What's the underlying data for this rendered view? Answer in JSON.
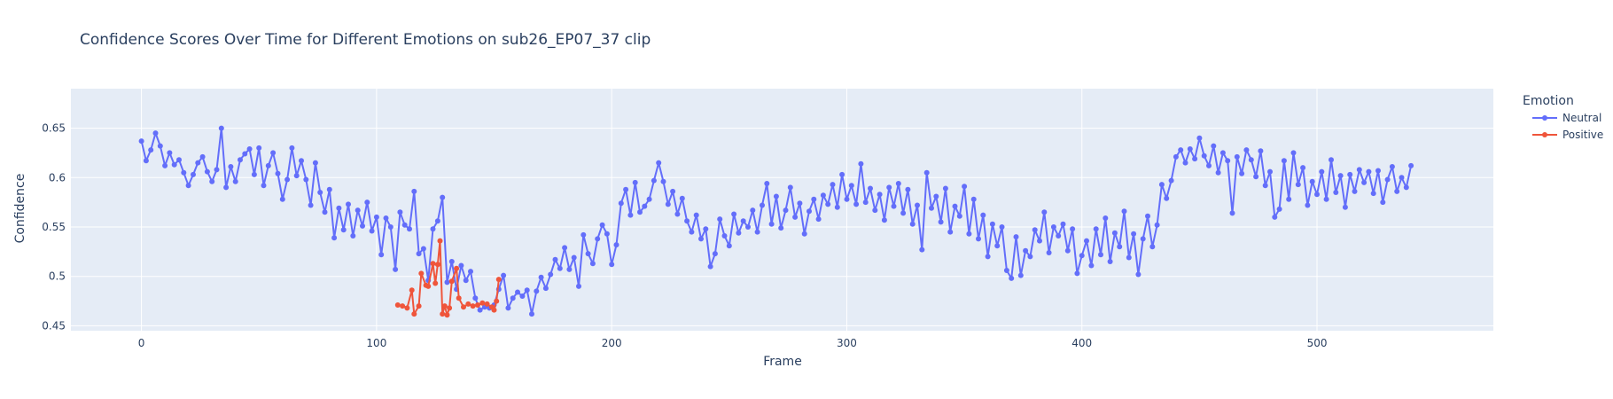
{
  "chart_data": {
    "type": "line",
    "title": "Confidence Scores Over Time for Different Emotions on sub26_EP07_37 clip",
    "xlabel": "Frame",
    "ylabel": "Confidence",
    "xlim": [
      -30,
      575
    ],
    "ylim": [
      0.445,
      0.69
    ],
    "x_ticks": [
      0,
      100,
      200,
      300,
      400,
      500
    ],
    "x_tick_labels": [
      "0",
      "100",
      "200",
      "300",
      "400",
      "500"
    ],
    "y_ticks": [
      0.45,
      0.5,
      0.55,
      0.6,
      0.65
    ],
    "y_tick_labels": [
      "0.45",
      "0.5",
      "0.55",
      "0.6",
      "0.65"
    ],
    "grid": true,
    "legend_title": "Emotion",
    "legend_position": "top-right",
    "series": [
      {
        "name": "Neutral",
        "color": "#636efa",
        "points": [
          [
            0,
            0.637
          ],
          [
            2,
            0.617
          ],
          [
            4,
            0.628
          ],
          [
            6,
            0.645
          ],
          [
            8,
            0.632
          ],
          [
            10,
            0.612
          ],
          [
            12,
            0.625
          ],
          [
            14,
            0.613
          ],
          [
            16,
            0.618
          ],
          [
            18,
            0.605
          ],
          [
            20,
            0.592
          ],
          [
            22,
            0.603
          ],
          [
            24,
            0.615
          ],
          [
            26,
            0.621
          ],
          [
            28,
            0.606
          ],
          [
            30,
            0.596
          ],
          [
            32,
            0.608
          ],
          [
            34,
            0.65
          ],
          [
            36,
            0.59
          ],
          [
            38,
            0.611
          ],
          [
            40,
            0.596
          ],
          [
            42,
            0.618
          ],
          [
            44,
            0.624
          ],
          [
            46,
            0.629
          ],
          [
            48,
            0.603
          ],
          [
            50,
            0.63
          ],
          [
            52,
            0.592
          ],
          [
            54,
            0.612
          ],
          [
            56,
            0.625
          ],
          [
            58,
            0.604
          ],
          [
            60,
            0.578
          ],
          [
            62,
            0.598
          ],
          [
            64,
            0.63
          ],
          [
            66,
            0.602
          ],
          [
            68,
            0.617
          ],
          [
            70,
            0.598
          ],
          [
            72,
            0.572
          ],
          [
            74,
            0.615
          ],
          [
            76,
            0.585
          ],
          [
            78,
            0.565
          ],
          [
            80,
            0.588
          ],
          [
            82,
            0.539
          ],
          [
            84,
            0.569
          ],
          [
            86,
            0.547
          ],
          [
            88,
            0.573
          ],
          [
            90,
            0.541
          ],
          [
            92,
            0.567
          ],
          [
            94,
            0.551
          ],
          [
            96,
            0.575
          ],
          [
            98,
            0.546
          ],
          [
            100,
            0.56
          ],
          [
            102,
            0.522
          ],
          [
            104,
            0.559
          ],
          [
            106,
            0.55
          ],
          [
            108,
            0.507
          ],
          [
            110,
            0.565
          ],
          [
            112,
            0.552
          ],
          [
            114,
            0.548
          ],
          [
            116,
            0.586
          ],
          [
            118,
            0.523
          ],
          [
            120,
            0.528
          ],
          [
            122,
            0.496
          ],
          [
            124,
            0.548
          ],
          [
            126,
            0.556
          ],
          [
            128,
            0.58
          ],
          [
            130,
            0.494
          ],
          [
            132,
            0.515
          ],
          [
            134,
            0.487
          ],
          [
            136,
            0.511
          ],
          [
            138,
            0.496
          ],
          [
            140,
            0.505
          ],
          [
            142,
            0.478
          ],
          [
            144,
            0.466
          ],
          [
            146,
            0.469
          ],
          [
            148,
            0.468
          ],
          [
            150,
            0.471
          ],
          [
            152,
            0.487
          ],
          [
            154,
            0.501
          ],
          [
            156,
            0.468
          ],
          [
            158,
            0.478
          ],
          [
            160,
            0.484
          ],
          [
            162,
            0.48
          ],
          [
            164,
            0.486
          ],
          [
            166,
            0.462
          ],
          [
            168,
            0.485
          ],
          [
            170,
            0.499
          ],
          [
            172,
            0.488
          ],
          [
            174,
            0.502
          ],
          [
            176,
            0.517
          ],
          [
            178,
            0.508
          ],
          [
            180,
            0.529
          ],
          [
            182,
            0.507
          ],
          [
            184,
            0.519
          ],
          [
            186,
            0.49
          ],
          [
            188,
            0.542
          ],
          [
            190,
            0.523
          ],
          [
            192,
            0.513
          ],
          [
            194,
            0.538
          ],
          [
            196,
            0.552
          ],
          [
            198,
            0.543
          ],
          [
            200,
            0.512
          ],
          [
            202,
            0.532
          ],
          [
            204,
            0.574
          ],
          [
            206,
            0.588
          ],
          [
            208,
            0.562
          ],
          [
            210,
            0.595
          ],
          [
            212,
            0.565
          ],
          [
            214,
            0.571
          ],
          [
            216,
            0.578
          ],
          [
            218,
            0.597
          ],
          [
            220,
            0.615
          ],
          [
            222,
            0.596
          ],
          [
            224,
            0.573
          ],
          [
            226,
            0.586
          ],
          [
            228,
            0.563
          ],
          [
            230,
            0.579
          ],
          [
            232,
            0.556
          ],
          [
            234,
            0.545
          ],
          [
            236,
            0.562
          ],
          [
            238,
            0.538
          ],
          [
            240,
            0.548
          ],
          [
            242,
            0.51
          ],
          [
            244,
            0.523
          ],
          [
            246,
            0.558
          ],
          [
            248,
            0.541
          ],
          [
            250,
            0.531
          ],
          [
            252,
            0.563
          ],
          [
            254,
            0.544
          ],
          [
            256,
            0.556
          ],
          [
            258,
            0.55
          ],
          [
            260,
            0.567
          ],
          [
            262,
            0.545
          ],
          [
            264,
            0.572
          ],
          [
            266,
            0.594
          ],
          [
            268,
            0.553
          ],
          [
            270,
            0.581
          ],
          [
            272,
            0.549
          ],
          [
            274,
            0.567
          ],
          [
            276,
            0.59
          ],
          [
            278,
            0.56
          ],
          [
            280,
            0.574
          ],
          [
            282,
            0.543
          ],
          [
            284,
            0.566
          ],
          [
            286,
            0.578
          ],
          [
            288,
            0.558
          ],
          [
            290,
            0.582
          ],
          [
            292,
            0.573
          ],
          [
            294,
            0.593
          ],
          [
            296,
            0.57
          ],
          [
            298,
            0.603
          ],
          [
            300,
            0.578
          ],
          [
            302,
            0.592
          ],
          [
            304,
            0.573
          ],
          [
            306,
            0.614
          ],
          [
            308,
            0.575
          ],
          [
            310,
            0.589
          ],
          [
            312,
            0.567
          ],
          [
            314,
            0.583
          ],
          [
            316,
            0.557
          ],
          [
            318,
            0.59
          ],
          [
            320,
            0.571
          ],
          [
            322,
            0.594
          ],
          [
            324,
            0.564
          ],
          [
            326,
            0.588
          ],
          [
            328,
            0.553
          ],
          [
            330,
            0.572
          ],
          [
            332,
            0.527
          ],
          [
            334,
            0.605
          ],
          [
            336,
            0.569
          ],
          [
            338,
            0.581
          ],
          [
            340,
            0.555
          ],
          [
            342,
            0.589
          ],
          [
            344,
            0.545
          ],
          [
            346,
            0.571
          ],
          [
            348,
            0.561
          ],
          [
            350,
            0.591
          ],
          [
            352,
            0.543
          ],
          [
            354,
            0.578
          ],
          [
            356,
            0.538
          ],
          [
            358,
            0.562
          ],
          [
            360,
            0.52
          ],
          [
            362,
            0.553
          ],
          [
            364,
            0.531
          ],
          [
            366,
            0.55
          ],
          [
            368,
            0.506
          ],
          [
            370,
            0.498
          ],
          [
            372,
            0.54
          ],
          [
            374,
            0.501
          ],
          [
            376,
            0.526
          ],
          [
            378,
            0.52
          ],
          [
            380,
            0.547
          ],
          [
            382,
            0.536
          ],
          [
            384,
            0.565
          ],
          [
            386,
            0.524
          ],
          [
            388,
            0.55
          ],
          [
            390,
            0.541
          ],
          [
            392,
            0.553
          ],
          [
            394,
            0.526
          ],
          [
            396,
            0.548
          ],
          [
            398,
            0.503
          ],
          [
            400,
            0.521
          ],
          [
            402,
            0.536
          ],
          [
            404,
            0.511
          ],
          [
            406,
            0.548
          ],
          [
            408,
            0.522
          ],
          [
            410,
            0.559
          ],
          [
            412,
            0.515
          ],
          [
            414,
            0.544
          ],
          [
            416,
            0.53
          ],
          [
            418,
            0.566
          ],
          [
            420,
            0.519
          ],
          [
            422,
            0.543
          ],
          [
            424,
            0.502
          ],
          [
            426,
            0.538
          ],
          [
            428,
            0.561
          ],
          [
            430,
            0.53
          ],
          [
            432,
            0.552
          ],
          [
            434,
            0.593
          ],
          [
            436,
            0.579
          ],
          [
            438,
            0.597
          ],
          [
            440,
            0.621
          ],
          [
            442,
            0.628
          ],
          [
            444,
            0.615
          ],
          [
            446,
            0.629
          ],
          [
            448,
            0.619
          ],
          [
            450,
            0.64
          ],
          [
            452,
            0.622
          ],
          [
            454,
            0.612
          ],
          [
            456,
            0.632
          ],
          [
            458,
            0.605
          ],
          [
            460,
            0.625
          ],
          [
            462,
            0.617
          ],
          [
            464,
            0.564
          ],
          [
            466,
            0.621
          ],
          [
            468,
            0.604
          ],
          [
            470,
            0.628
          ],
          [
            472,
            0.618
          ],
          [
            474,
            0.601
          ],
          [
            476,
            0.627
          ],
          [
            478,
            0.592
          ],
          [
            480,
            0.606
          ],
          [
            482,
            0.56
          ],
          [
            484,
            0.568
          ],
          [
            486,
            0.617
          ],
          [
            488,
            0.578
          ],
          [
            490,
            0.625
          ],
          [
            492,
            0.593
          ],
          [
            494,
            0.61
          ],
          [
            496,
            0.572
          ],
          [
            498,
            0.596
          ],
          [
            500,
            0.583
          ],
          [
            502,
            0.606
          ],
          [
            504,
            0.578
          ],
          [
            506,
            0.618
          ],
          [
            508,
            0.585
          ],
          [
            510,
            0.602
          ],
          [
            512,
            0.57
          ],
          [
            514,
            0.603
          ],
          [
            516,
            0.586
          ],
          [
            518,
            0.608
          ],
          [
            520,
            0.595
          ],
          [
            522,
            0.606
          ],
          [
            524,
            0.584
          ],
          [
            526,
            0.607
          ],
          [
            528,
            0.575
          ],
          [
            530,
            0.598
          ],
          [
            532,
            0.611
          ],
          [
            534,
            0.586
          ],
          [
            536,
            0.6
          ],
          [
            538,
            0.59
          ],
          [
            540,
            0.612
          ]
        ]
      },
      {
        "name": "Positive",
        "color": "#ef553b",
        "points": [
          [
            109,
            0.471
          ],
          [
            111,
            0.47
          ],
          [
            113,
            0.468
          ],
          [
            115,
            0.486
          ],
          [
            116,
            0.462
          ],
          [
            118,
            0.47
          ],
          [
            119,
            0.503
          ],
          [
            121,
            0.491
          ],
          [
            122,
            0.49
          ],
          [
            124,
            0.513
          ],
          [
            125,
            0.493
          ],
          [
            126,
            0.512
          ],
          [
            127,
            0.536
          ],
          [
            128,
            0.462
          ],
          [
            129,
            0.47
          ],
          [
            130,
            0.461
          ],
          [
            131,
            0.468
          ],
          [
            132,
            0.495
          ],
          [
            134,
            0.508
          ],
          [
            135,
            0.478
          ],
          [
            137,
            0.469
          ],
          [
            139,
            0.472
          ],
          [
            141,
            0.47
          ],
          [
            143,
            0.471
          ],
          [
            145,
            0.473
          ],
          [
            147,
            0.472
          ],
          [
            149,
            0.469
          ],
          [
            150,
            0.466
          ],
          [
            151,
            0.475
          ],
          [
            152,
            0.497
          ]
        ]
      }
    ]
  }
}
